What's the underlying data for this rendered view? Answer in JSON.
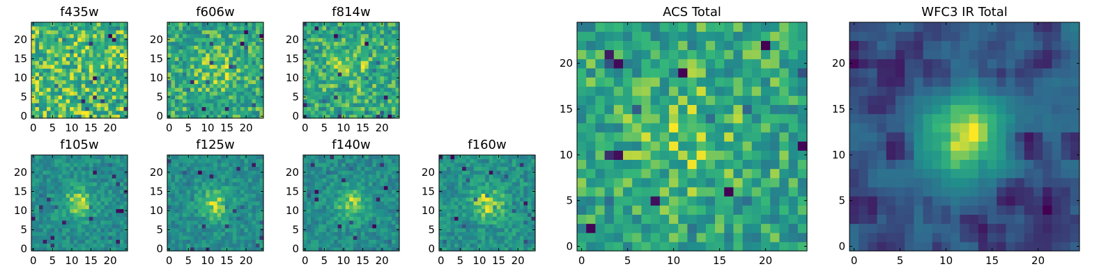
{
  "figure": {
    "colormap": "viridis",
    "colors": [
      "#440154",
      "#31688e",
      "#21918c",
      "#35b779",
      "#fde725"
    ]
  },
  "chart_data": [
    {
      "id": "f435w",
      "type": "heatmap",
      "title": "f435w",
      "source_shape": [
        25,
        25
      ],
      "source_data": "not_legible",
      "feature": "none",
      "xlim": [
        -0.5,
        24.5
      ],
      "ylim": [
        -0.5,
        24.5
      ],
      "xticks": [
        0,
        5,
        10,
        15,
        20
      ],
      "yticks": [
        0,
        5,
        10,
        15,
        20
      ],
      "xticklabels": [
        "0",
        "5",
        "10",
        "15",
        "20"
      ],
      "yticklabels": [
        "0",
        "5",
        "10",
        "15",
        "20"
      ]
    },
    {
      "id": "f606w",
      "type": "heatmap",
      "title": "f606w",
      "source_shape": [
        25,
        25
      ],
      "source_data": "not_legible",
      "feature": "faint",
      "xlim": [
        -0.5,
        24.5
      ],
      "ylim": [
        -0.5,
        24.5
      ],
      "xticks": [
        0,
        5,
        10,
        15,
        20
      ],
      "yticks": [
        0,
        5,
        10,
        15,
        20
      ],
      "xticklabels": [
        "0",
        "5",
        "10",
        "15",
        "20"
      ],
      "yticklabels": [
        "0",
        "5",
        "10",
        "15",
        "20"
      ]
    },
    {
      "id": "f814w",
      "type": "heatmap",
      "title": "f814w",
      "source_shape": [
        25,
        25
      ],
      "source_data": "not_legible",
      "feature": "faint",
      "xlim": [
        -0.5,
        24.5
      ],
      "ylim": [
        -0.5,
        24.5
      ],
      "xticks": [
        0,
        5,
        10,
        15,
        20
      ],
      "yticks": [
        0,
        5,
        10,
        15,
        20
      ],
      "xticklabels": [
        "0",
        "5",
        "10",
        "15",
        "20"
      ],
      "yticklabels": [
        "0",
        "5",
        "10",
        "15",
        "20"
      ]
    },
    {
      "id": "f105w",
      "type": "heatmap",
      "title": "f105w",
      "source_shape": [
        25,
        25
      ],
      "source_data": "not_legible",
      "feature": "bright",
      "xlim": [
        -0.5,
        24.5
      ],
      "ylim": [
        -0.5,
        24.5
      ],
      "xticks": [
        0,
        5,
        10,
        15,
        20
      ],
      "yticks": [
        0,
        5,
        10,
        15,
        20
      ],
      "xticklabels": [
        "0",
        "5",
        "10",
        "15",
        "20"
      ],
      "yticklabels": [
        "0",
        "5",
        "10",
        "15",
        "20"
      ]
    },
    {
      "id": "f125w",
      "type": "heatmap",
      "title": "f125w",
      "source_shape": [
        25,
        25
      ],
      "source_data": "not_legible",
      "feature": "bright",
      "xlim": [
        -0.5,
        24.5
      ],
      "ylim": [
        -0.5,
        24.5
      ],
      "xticks": [
        0,
        5,
        10,
        15,
        20
      ],
      "yticks": [
        0,
        5,
        10,
        15,
        20
      ],
      "xticklabels": [
        "0",
        "5",
        "10",
        "15",
        "20"
      ],
      "yticklabels": [
        "0",
        "5",
        "10",
        "15",
        "20"
      ]
    },
    {
      "id": "f140w",
      "type": "heatmap",
      "title": "f140w",
      "source_shape": [
        25,
        25
      ],
      "source_data": "not_legible",
      "feature": "bright",
      "xlim": [
        -0.5,
        24.5
      ],
      "ylim": [
        -0.5,
        24.5
      ],
      "xticks": [
        0,
        5,
        10,
        15,
        20
      ],
      "yticks": [
        0,
        5,
        10,
        15,
        20
      ],
      "xticklabels": [
        "0",
        "5",
        "10",
        "15",
        "20"
      ],
      "yticklabels": [
        "0",
        "5",
        "10",
        "15",
        "20"
      ]
    },
    {
      "id": "f160w",
      "type": "heatmap",
      "title": "f160w",
      "source_shape": [
        25,
        25
      ],
      "source_data": "not_legible",
      "feature": "bright",
      "xlim": [
        -0.5,
        24.5
      ],
      "ylim": [
        -0.5,
        24.5
      ],
      "xticks": [
        0,
        5,
        10,
        15,
        20
      ],
      "yticks": [
        0,
        5,
        10,
        15,
        20
      ],
      "xticklabels": [
        "0",
        "5",
        "10",
        "15",
        "20"
      ],
      "yticklabels": [
        "0",
        "5",
        "10",
        "15",
        "20"
      ]
    },
    {
      "id": "acs-total",
      "type": "heatmap",
      "title": "ACS Total",
      "source_shape": [
        25,
        25
      ],
      "source_data": "not_legible",
      "feature": "faint",
      "xlim": [
        -0.5,
        24.5
      ],
      "ylim": [
        -0.5,
        24.5
      ],
      "xticks": [
        0,
        5,
        10,
        15,
        20
      ],
      "yticks": [
        0,
        5,
        10,
        15,
        20
      ],
      "xticklabels": [
        "0",
        "5",
        "10",
        "15",
        "20"
      ],
      "yticklabels": [
        "0",
        "5",
        "10",
        "15",
        "20"
      ]
    },
    {
      "id": "wfc3-total",
      "type": "heatmap",
      "title": "WFC3 IR Total",
      "source_shape": [
        25,
        25
      ],
      "source_data": "not_legible",
      "feature": "smooth",
      "xlim": [
        -0.5,
        24.5
      ],
      "ylim": [
        -0.5,
        24.5
      ],
      "xticks": [
        0,
        5,
        10,
        15,
        20
      ],
      "yticks": [
        0,
        5,
        10,
        15,
        20
      ],
      "xticklabels": [
        "0",
        "5",
        "10",
        "15",
        "20"
      ],
      "yticklabels": [
        "0",
        "5",
        "10",
        "15",
        "20"
      ]
    }
  ]
}
